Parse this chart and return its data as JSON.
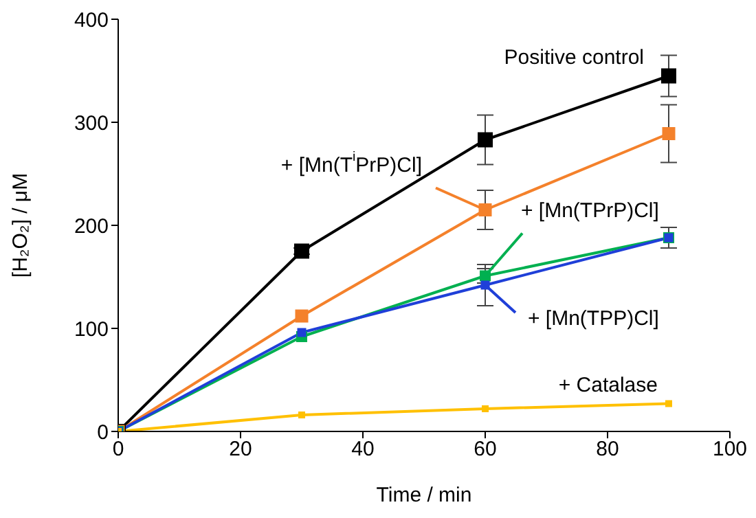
{
  "chart_data": {
    "type": "line",
    "xlabel": "Time / min",
    "ylabel": "[H₂O₂] / μM",
    "x": [
      0,
      30,
      60,
      90
    ],
    "series": [
      {
        "name": "Positive control",
        "color": "#000000",
        "values": [
          0,
          175,
          283,
          345
        ],
        "errors": [
          null,
          3,
          24,
          20
        ]
      },
      {
        "name": "+ [Mn(T$^{i}$PrP)Cl]",
        "color": "#f4812b",
        "values": [
          0,
          112,
          215,
          289
        ],
        "errors": [
          null,
          null,
          19,
          28
        ]
      },
      {
        "name": "+ [Mn(TPrP)Cl]",
        "color": "#00b050",
        "values": [
          0,
          92,
          151,
          188
        ],
        "errors": [
          null,
          null,
          7,
          null
        ]
      },
      {
        "name": "+ [Mn(TPP)Cl]",
        "color": "#1f3fd8",
        "values": [
          0,
          96,
          142,
          188
        ],
        "errors": [
          null,
          null,
          20,
          10
        ]
      },
      {
        "name": "+ Catalase",
        "color": "#ffc000",
        "values": [
          0,
          16,
          22,
          27
        ]
      }
    ],
    "xlim": [
      0,
      100
    ],
    "xticks": [
      0,
      20,
      40,
      60,
      80,
      100
    ],
    "ylim": [
      0,
      400
    ],
    "yticks": [
      0,
      100,
      200,
      300,
      400
    ],
    "grid": false,
    "legend": false,
    "marker": "square",
    "line_style": "solid"
  }
}
